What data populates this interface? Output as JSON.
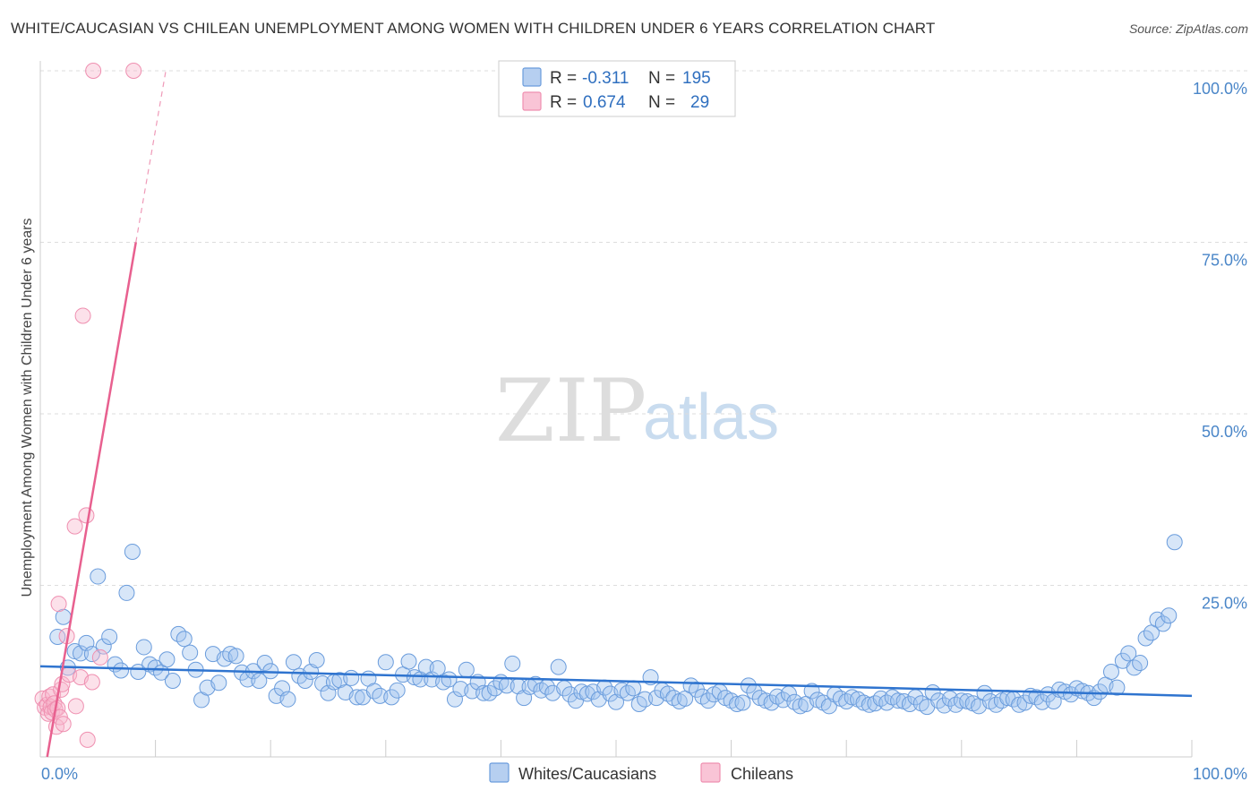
{
  "title": "WHITE/CAUCASIAN VS CHILEAN UNEMPLOYMENT AMONG WOMEN WITH CHILDREN UNDER 6 YEARS CORRELATION CHART",
  "source": "Source: ZipAtlas.com",
  "watermark": {
    "zip": "ZIP",
    "atlas": "atlas"
  },
  "legend": {
    "r_label": "R =",
    "n_label": "N =",
    "rows": [
      {
        "r": "-0.311",
        "n": "195"
      },
      {
        "r": "0.674",
        "n": "29"
      }
    ]
  },
  "bottom_legend": [
    "Whites/Caucasians",
    "Chileans"
  ],
  "chart_data": {
    "type": "scatter",
    "title": "WHITE/CAUCASIAN VS CHILEAN UNEMPLOYMENT AMONG WOMEN WITH CHILDREN UNDER 6 YEARS CORRELATION CHART",
    "xlabel": "",
    "ylabel": "Unemployment Among Women with Children Under 6 years",
    "xlim": [
      0,
      100
    ],
    "ylim": [
      0,
      100
    ],
    "x_ticks": [
      "0.0%",
      "100.0%"
    ],
    "y_ticks": [
      {
        "value": 25,
        "label": "25.0%"
      },
      {
        "value": 50,
        "label": "50.0%"
      },
      {
        "value": 75,
        "label": "75.0%"
      },
      {
        "value": 100,
        "label": "100.0%"
      }
    ],
    "grid": true,
    "colors": {
      "whites": "#5b93dd",
      "chileans": "#ef6d9a",
      "grid": "#dddddd"
    },
    "series": [
      {
        "name": "Whites/Caucasians",
        "r": -0.311,
        "n": 195,
        "trend": {
          "x": [
            0,
            100
          ],
          "y": [
            13.2,
            8.9
          ]
        },
        "points": [
          [
            1.5,
            17.5
          ],
          [
            2,
            20.4
          ],
          [
            2.4,
            13
          ],
          [
            3,
            15.4
          ],
          [
            3.5,
            15.1
          ],
          [
            4,
            16.6
          ],
          [
            4.5,
            15
          ],
          [
            5,
            26.3
          ],
          [
            5.5,
            16.1
          ],
          [
            6,
            17.5
          ],
          [
            6.5,
            13.5
          ],
          [
            7,
            12.6
          ],
          [
            7.5,
            23.9
          ],
          [
            8,
            29.9
          ],
          [
            8.5,
            12.4
          ],
          [
            9,
            16
          ],
          [
            9.5,
            13.5
          ],
          [
            10,
            13
          ],
          [
            10.5,
            12.3
          ],
          [
            11,
            14.2
          ],
          [
            11.5,
            11.1
          ],
          [
            12,
            17.9
          ],
          [
            12.5,
            17.2
          ],
          [
            13,
            15.2
          ],
          [
            13.5,
            12.7
          ],
          [
            14,
            8.3
          ],
          [
            14.5,
            10.1
          ],
          [
            15,
            15
          ],
          [
            15.5,
            10.8
          ],
          [
            16,
            14.3
          ],
          [
            16.5,
            15
          ],
          [
            17,
            14.7
          ],
          [
            17.5,
            12.3
          ],
          [
            18,
            11.3
          ],
          [
            18.5,
            12.5
          ],
          [
            19,
            11.1
          ],
          [
            19.5,
            13.7
          ],
          [
            20,
            12.5
          ],
          [
            20.5,
            8.9
          ],
          [
            21,
            10
          ],
          [
            21.5,
            8.4
          ],
          [
            22,
            13.8
          ],
          [
            22.5,
            11.8
          ],
          [
            23,
            11.1
          ],
          [
            23.5,
            12.4
          ],
          [
            24,
            14.1
          ],
          [
            24.5,
            10.7
          ],
          [
            25,
            9.3
          ],
          [
            25.5,
            10.9
          ],
          [
            26,
            11.2
          ],
          [
            26.5,
            9.4
          ],
          [
            27,
            11.5
          ],
          [
            27.5,
            8.7
          ],
          [
            28,
            8.7
          ],
          [
            28.5,
            11.4
          ],
          [
            29,
            9.6
          ],
          [
            29.5,
            8.9
          ],
          [
            30,
            13.8
          ],
          [
            30.5,
            8.7
          ],
          [
            31,
            9.7
          ],
          [
            31.5,
            12
          ],
          [
            32,
            13.9
          ],
          [
            32.5,
            11.6
          ],
          [
            33,
            11.3
          ],
          [
            33.5,
            13.1
          ],
          [
            34,
            11.3
          ],
          [
            34.5,
            12.9
          ],
          [
            35,
            10.9
          ],
          [
            35.5,
            11.3
          ],
          [
            36,
            8.4
          ],
          [
            36.5,
            9.9
          ],
          [
            37,
            12.7
          ],
          [
            37.5,
            9.6
          ],
          [
            38,
            10.9
          ],
          [
            38.5,
            9.3
          ],
          [
            39,
            9.3
          ],
          [
            39.5,
            10
          ],
          [
            40,
            10.9
          ],
          [
            40.5,
            10.4
          ],
          [
            41,
            13.6
          ],
          [
            41.5,
            10.3
          ],
          [
            42,
            8.6
          ],
          [
            42.5,
            10.2
          ],
          [
            43,
            10.6
          ],
          [
            43.5,
            9.7
          ],
          [
            44,
            10.2
          ],
          [
            44.5,
            9.3
          ],
          [
            45,
            13.1
          ],
          [
            45.5,
            10
          ],
          [
            46,
            9.1
          ],
          [
            46.5,
            8.2
          ],
          [
            47,
            9.5
          ],
          [
            47.5,
            9.2
          ],
          [
            48,
            9.5
          ],
          [
            48.5,
            8.4
          ],
          [
            49,
            10.1
          ],
          [
            49.5,
            9.2
          ],
          [
            50,
            8
          ],
          [
            50.5,
            9.7
          ],
          [
            51,
            9.3
          ],
          [
            51.5,
            10
          ],
          [
            52,
            7.7
          ],
          [
            52.5,
            8.4
          ],
          [
            53,
            11.6
          ],
          [
            53.5,
            8.6
          ],
          [
            54,
            9.7
          ],
          [
            54.5,
            9.2
          ],
          [
            55,
            8.6
          ],
          [
            55.5,
            8.1
          ],
          [
            56,
            8.5
          ],
          [
            56.5,
            10.4
          ],
          [
            57,
            9.8
          ],
          [
            57.5,
            8.8
          ],
          [
            58,
            8.2
          ],
          [
            58.5,
            9.1
          ],
          [
            59,
            9.5
          ],
          [
            59.5,
            8.6
          ],
          [
            60,
            8.2
          ],
          [
            60.5,
            7.7
          ],
          [
            61,
            7.9
          ],
          [
            61.5,
            10.4
          ],
          [
            62,
            9.5
          ],
          [
            62.5,
            8.6
          ],
          [
            63,
            8.2
          ],
          [
            63.5,
            7.9
          ],
          [
            64,
            8.8
          ],
          [
            64.5,
            8.3
          ],
          [
            65,
            9.2
          ],
          [
            65.5,
            8
          ],
          [
            66,
            7.4
          ],
          [
            66.5,
            7.7
          ],
          [
            67,
            9.6
          ],
          [
            67.5,
            8.3
          ],
          [
            68,
            7.9
          ],
          [
            68.5,
            7.4
          ],
          [
            69,
            9.1
          ],
          [
            69.5,
            8.5
          ],
          [
            70,
            8.1
          ],
          [
            70.5,
            8.7
          ],
          [
            71,
            8.4
          ],
          [
            71.5,
            7.9
          ],
          [
            72,
            7.6
          ],
          [
            72.5,
            7.8
          ],
          [
            73,
            8.5
          ],
          [
            73.5,
            7.9
          ],
          [
            74,
            8.7
          ],
          [
            74.5,
            8.2
          ],
          [
            75,
            8.1
          ],
          [
            75.5,
            7.7
          ],
          [
            76,
            8.7
          ],
          [
            76.5,
            7.8
          ],
          [
            77,
            7.3
          ],
          [
            77.5,
            9.4
          ],
          [
            78,
            8.2
          ],
          [
            78.5,
            7.5
          ],
          [
            79,
            8.5
          ],
          [
            79.5,
            7.6
          ],
          [
            80,
            8.2
          ],
          [
            80.5,
            8.1
          ],
          [
            81,
            7.8
          ],
          [
            81.5,
            7.4
          ],
          [
            82,
            9.3
          ],
          [
            82.5,
            8.1
          ],
          [
            83,
            7.6
          ],
          [
            83.5,
            8.2
          ],
          [
            84,
            8.6
          ],
          [
            84.5,
            8.4
          ],
          [
            85,
            7.6
          ],
          [
            85.5,
            7.9
          ],
          [
            86,
            8.9
          ],
          [
            86.5,
            8.7
          ],
          [
            87,
            8
          ],
          [
            87.5,
            9.1
          ],
          [
            88,
            8.1
          ],
          [
            88.5,
            9.8
          ],
          [
            89,
            9.5
          ],
          [
            89.5,
            9.1
          ],
          [
            90,
            10
          ],
          [
            90.5,
            9.6
          ],
          [
            91,
            9.3
          ],
          [
            91.5,
            8.6
          ],
          [
            92,
            9.5
          ],
          [
            92.5,
            10.5
          ],
          [
            93,
            12.4
          ],
          [
            93.5,
            10.1
          ],
          [
            94,
            14
          ],
          [
            94.5,
            15.1
          ],
          [
            95,
            13
          ],
          [
            95.5,
            13.7
          ],
          [
            96,
            17.3
          ],
          [
            96.5,
            18.1
          ],
          [
            97,
            20
          ],
          [
            97.5,
            19.4
          ],
          [
            98,
            20.6
          ],
          [
            98.5,
            31.3
          ]
        ]
      },
      {
        "name": "Chileans",
        "r": 0.674,
        "n": 29,
        "trend": {
          "x": [
            0.6,
            8.3
          ],
          "y": [
            0,
            75
          ]
        },
        "trend_dashed": {
          "x": [
            8.3,
            10.9
          ],
          "y": [
            75,
            100
          ]
        },
        "points": [
          [
            0.2,
            8.5
          ],
          [
            0.4,
            7.2
          ],
          [
            0.6,
            7.6
          ],
          [
            0.7,
            6.3
          ],
          [
            0.8,
            8.8
          ],
          [
            0.9,
            7.3
          ],
          [
            1,
            6.5
          ],
          [
            1.1,
            9.1
          ],
          [
            1.2,
            7.8
          ],
          [
            1.3,
            6.9
          ],
          [
            1.4,
            4.4
          ],
          [
            1.5,
            7.1
          ],
          [
            1.6,
            22.3
          ],
          [
            1.7,
            5.8
          ],
          [
            1.8,
            9.8
          ],
          [
            1.9,
            10.6
          ],
          [
            2,
            4.8
          ],
          [
            2.3,
            17.6
          ],
          [
            2.5,
            12
          ],
          [
            3,
            33.6
          ],
          [
            3.1,
            7.4
          ],
          [
            3.5,
            11.6
          ],
          [
            3.7,
            64.3
          ],
          [
            4,
            35.2
          ],
          [
            4.1,
            2.5
          ],
          [
            4.5,
            10.9
          ],
          [
            4.6,
            100
          ],
          [
            5.2,
            14.5
          ],
          [
            8.1,
            100
          ]
        ]
      }
    ]
  }
}
